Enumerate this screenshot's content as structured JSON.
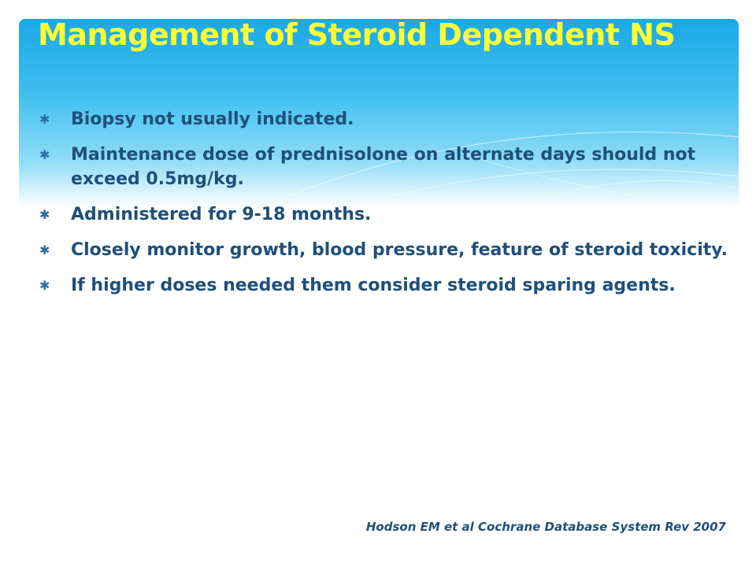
{
  "slide": {
    "title": "Management of Steroid Dependent NS",
    "bullet_marker": "✱",
    "bullets": [
      "Biopsy not usually indicated.",
      "Maintenance dose of prednisolone on alternate days should not exceed 0.5mg/kg.",
      "Administered for 9-18 months.",
      "Closely monitor growth, blood pressure, feature of steroid toxicity.",
      "If higher doses needed them consider steroid sparing agents."
    ],
    "citation": "Hodson EM et al Cochrane Database System Rev 2007"
  },
  "colors": {
    "banner": "#1aa9e6",
    "title": "#ffff33",
    "text": "#1f4f7a"
  }
}
